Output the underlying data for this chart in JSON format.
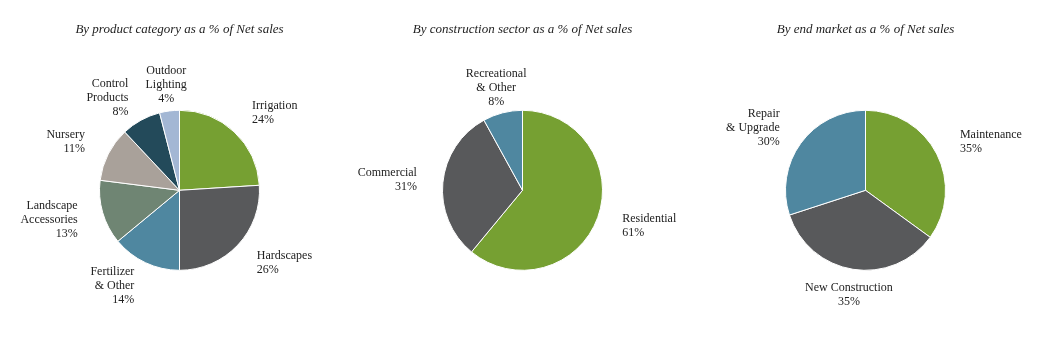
{
  "chart_data": [
    {
      "type": "pie",
      "title": "By product category as a % of Net sales",
      "categories": [
        "Irrigation",
        "Hardscapes",
        "Fertilizer\n& Other",
        "Landscape\nAccessories",
        "Nursery",
        "Control\nProducts",
        "Outdoor\nLighting"
      ],
      "values": [
        24,
        26,
        14,
        13,
        11,
        8,
        4
      ],
      "value_labels": [
        "24%",
        "26%",
        "14%",
        "13%",
        "11%",
        "8%",
        "4%"
      ],
      "colors": [
        "#76a032",
        "#58595b",
        "#4f87a0",
        "#6f8573",
        "#a9a19a",
        "#234a5a",
        "#a3b7d4"
      ]
    },
    {
      "type": "pie",
      "title": "By construction sector as a % of Net sales",
      "categories": [
        "Residential",
        "Commercial",
        "Recreational\n& Other"
      ],
      "values": [
        61,
        31,
        8
      ],
      "value_labels": [
        "61%",
        "31%",
        "8%"
      ],
      "colors": [
        "#76a032",
        "#58595b",
        "#4f87a0"
      ]
    },
    {
      "type": "pie",
      "title": "By end market as a % of Net sales",
      "categories": [
        "Maintenance",
        "New Construction",
        "Repair\n& Upgrade"
      ],
      "values": [
        35,
        35,
        30
      ],
      "value_labels": [
        "35%",
        "35%",
        "30%"
      ],
      "colors": [
        "#76a032",
        "#58595b",
        "#4f87a0"
      ]
    }
  ]
}
